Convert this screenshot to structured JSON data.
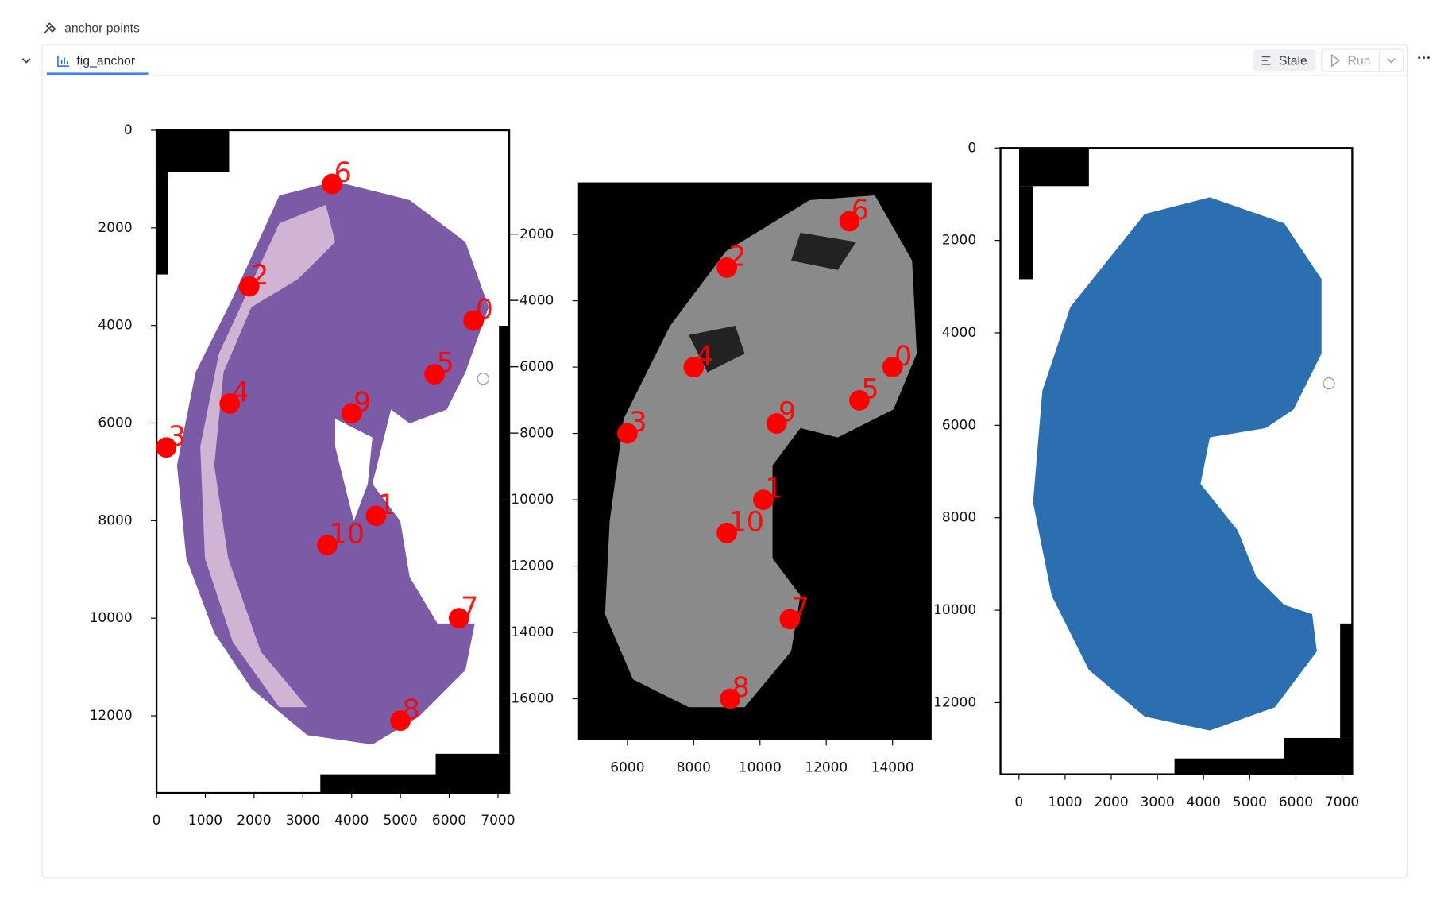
{
  "header": {
    "title": "anchor points"
  },
  "tab": {
    "label": "fig_anchor"
  },
  "buttons": {
    "stale": "Stale",
    "run": "Run"
  },
  "chart_data": [
    {
      "type": "scatter",
      "color": "#ff0000",
      "point_labels": [
        "0",
        "1",
        "2",
        "3",
        "4",
        "5",
        "6",
        "7",
        "8",
        "9",
        "10"
      ],
      "x": [
        6500,
        4500,
        1900,
        200,
        1500,
        5700,
        3600,
        6200,
        5000,
        4000,
        3500
      ],
      "y": [
        3900,
        7900,
        3200,
        6500,
        5600,
        5000,
        1100,
        10000,
        12100,
        5800,
        8500
      ],
      "xlim": [
        0,
        7230
      ],
      "ylim": [
        13580,
        0
      ],
      "xticks": [
        0,
        1000,
        2000,
        3000,
        4000,
        5000,
        6000,
        7000
      ],
      "yticks": [
        0,
        2000,
        4000,
        6000,
        8000,
        10000,
        12000
      ]
    },
    {
      "type": "scatter",
      "color": "#ff0000",
      "point_labels": [
        "0",
        "1",
        "2",
        "3",
        "4",
        "5",
        "6",
        "7",
        "8",
        "9",
        "10"
      ],
      "x": [
        14000,
        10100,
        9000,
        6000,
        8000,
        13000,
        12700,
        10900,
        9100,
        10500,
        9000
      ],
      "y": [
        -6000,
        -10000,
        -3000,
        -8000,
        -6000,
        -7000,
        -1600,
        -13600,
        -16000,
        -7700,
        -11000
      ],
      "xlim": [
        4510,
        15180
      ],
      "ylim": [
        -17240,
        -430
      ],
      "xticks": [
        6000,
        8000,
        10000,
        12000,
        14000
      ],
      "yticks": [
        {
          "value": -2000,
          "label": "−2000"
        },
        {
          "value": -4000,
          "label": "−4000"
        },
        {
          "value": -6000,
          "label": "−6000"
        },
        {
          "value": -8000,
          "label": "−8000"
        },
        {
          "value": -10000,
          "label": "−10000"
        },
        {
          "value": -12000,
          "label": "−12000"
        },
        {
          "value": -14000,
          "label": "−14000"
        },
        {
          "value": -16000,
          "label": "−16000"
        }
      ]
    },
    {
      "type": "image",
      "xlim": [
        -400,
        7220
      ],
      "ylim": [
        13550,
        0
      ],
      "xticks": [
        0,
        1000,
        2000,
        3000,
        4000,
        5000,
        6000,
        7000
      ],
      "yticks": [
        0,
        2000,
        4000,
        6000,
        8000,
        10000,
        12000
      ]
    }
  ]
}
